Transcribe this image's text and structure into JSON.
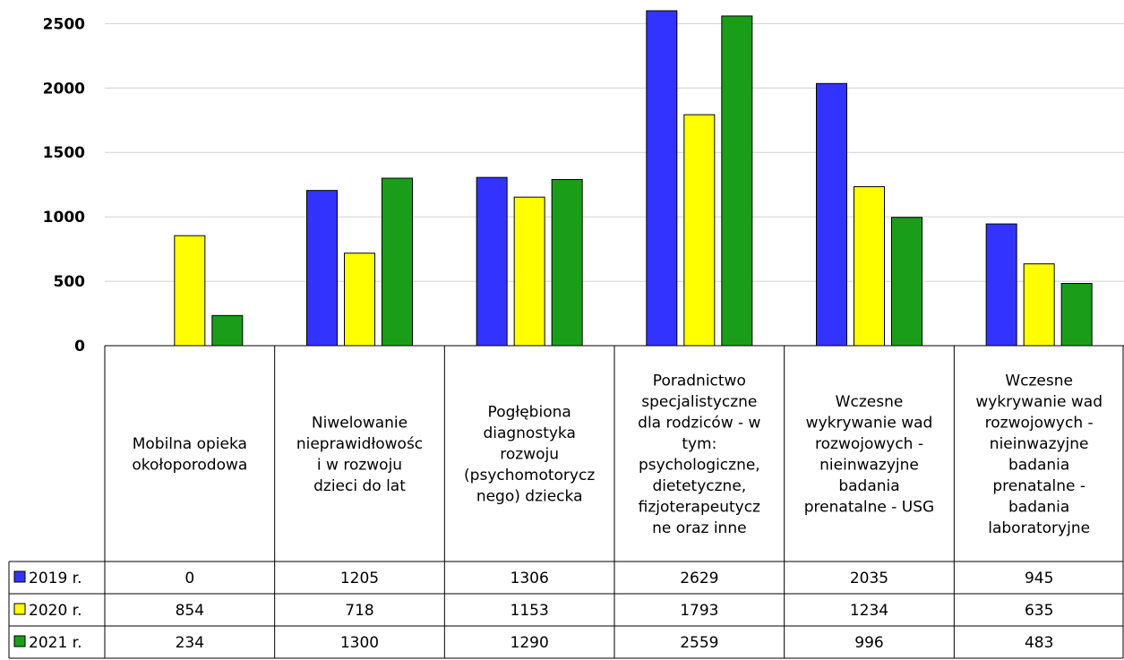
{
  "colors": {
    "2019 r.": "#3333ff",
    "2020 r.": "#ffff00",
    "2021 r.": "#1a9e1a"
  },
  "chart_data": {
    "type": "bar",
    "title": "",
    "xlabel": "",
    "ylabel": "",
    "ylim": [
      0,
      2600
    ],
    "yticks": [
      0,
      500,
      1000,
      1500,
      2000,
      2500
    ],
    "grid": true,
    "legend": "data-table",
    "categories": [
      [
        "Mobilna opieka",
        "okołoporodowa"
      ],
      [
        "Niwelowanie",
        "nieprawidłowośc",
        "i w rozwoju",
        "dzieci do lat"
      ],
      [
        "Pogłębiona",
        "diagnostyka",
        "rozwoju",
        "(psychomotorycz",
        "nego) dziecka"
      ],
      [
        "Poradnictwo",
        "specjalistyczne",
        "dla rodziców - w",
        "tym:",
        "psychologiczne,",
        "dietetyczne,",
        "fizjoterapeutycz",
        "ne oraz inne"
      ],
      [
        "Wczesne",
        "wykrywanie wad",
        "rozwojowych -",
        "nieinwazyjne",
        "badania",
        "prenatalne - USG"
      ],
      [
        "Wczesne",
        "wykrywanie wad",
        "rozwojowych -",
        "nieinwazyjne",
        "badania",
        "prenatalne -",
        "badania",
        "laboratoryjne"
      ]
    ],
    "series": [
      {
        "name": "2019 r.",
        "values": [
          0,
          1205,
          1306,
          2629,
          2035,
          945
        ]
      },
      {
        "name": "2020 r.",
        "values": [
          854,
          718,
          1153,
          1793,
          1234,
          635
        ]
      },
      {
        "name": "2021 r.",
        "values": [
          234,
          1300,
          1290,
          2559,
          996,
          483
        ]
      }
    ]
  }
}
